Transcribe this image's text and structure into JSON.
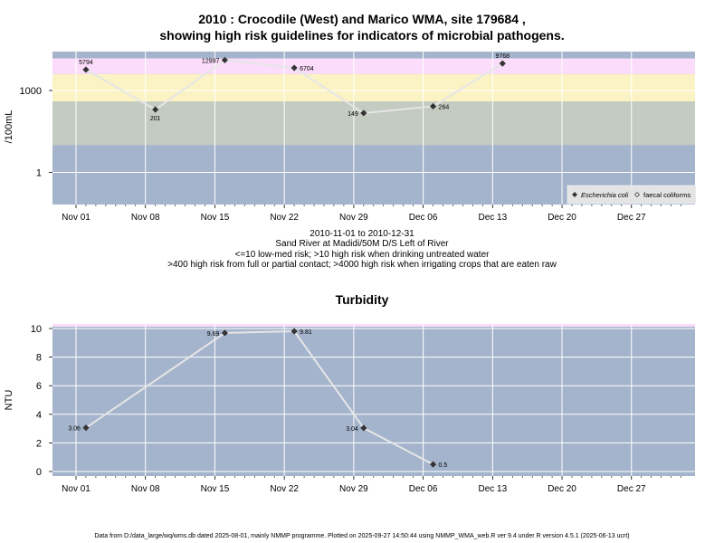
{
  "chart_data": [
    {
      "type": "line",
      "title_line1": "2010 : Crocodile (West) and Marico WMA, site 179684 ,",
      "title_line2": "showing high risk guidelines for indicators of microbial pathogens.",
      "ylabel": "/100mL",
      "yscale": "log",
      "ytick_labels": [
        "1",
        "1000"
      ],
      "x_tick_labels": [
        "Nov 01",
        "Nov 08",
        "Nov 15",
        "Nov 22",
        "Nov 29",
        "Dec 06",
        "Dec 13",
        "Dec 20",
        "Dec 27"
      ],
      "risk_bands": [
        {
          "from": 0.1,
          "to": 10,
          "color": "#a4b4cc"
        },
        {
          "from": 10,
          "to": 400,
          "color": "#c4cbc0"
        },
        {
          "from": 400,
          "to": 4000,
          "color": "#fbf3c4"
        },
        {
          "from": 4000,
          "to": 15000,
          "color": "#fbdcfb"
        }
      ],
      "series": [
        {
          "name": "Escherichia coli",
          "points": [
            {
              "date": "2010-11-02",
              "value": 5794,
              "label": "5794",
              "label_pos": "above"
            },
            {
              "date": "2010-11-09",
              "value": 201,
              "label": "201",
              "label_pos": "below"
            },
            {
              "date": "2010-11-16",
              "value": 12997,
              "label": "12997",
              "label_pos": "left"
            },
            {
              "date": "2010-11-23",
              "value": 6704,
              "label": "6704",
              "label_pos": "right"
            },
            {
              "date": "2010-11-30",
              "value": 149,
              "label": "149",
              "label_pos": "left"
            },
            {
              "date": "2010-12-07",
              "value": 264,
              "label": "264",
              "label_pos": "right"
            },
            {
              "date": "2010-12-14",
              "value": 9768,
              "label": "9768",
              "label_pos": "above"
            }
          ]
        }
      ],
      "legend": [
        {
          "label": "Escherichia coli",
          "marker": "filled-diamond",
          "italic": true
        },
        {
          "label": "faecal coliforms",
          "marker": "open-diamond",
          "italic": false
        }
      ],
      "legend_position": "bottom-right",
      "grid": true
    },
    {
      "type": "line",
      "title": "Turbidity",
      "ylabel": "NTU",
      "yticks": [
        0,
        2,
        4,
        6,
        8,
        10
      ],
      "ylim": [
        -0.3,
        10.2
      ],
      "x_tick_labels": [
        "Nov 01",
        "Nov 08",
        "Nov 15",
        "Nov 22",
        "Nov 29",
        "Dec 06",
        "Dec 13",
        "Dec 20",
        "Dec 27"
      ],
      "series": [
        {
          "points": [
            {
              "date": "2010-11-02",
              "value": 3.06,
              "label": "3.06",
              "label_pos": "left"
            },
            {
              "date": "2010-11-16",
              "value": 9.69,
              "label": "9.69",
              "label_pos": "left"
            },
            {
              "date": "2010-11-23",
              "value": 9.81,
              "label": "9.81",
              "label_pos": "right"
            },
            {
              "date": "2010-11-30",
              "value": 3.04,
              "label": "3.04",
              "label_pos": "left"
            },
            {
              "date": "2010-12-07",
              "value": 0.5,
              "label": "0.5",
              "label_pos": "right"
            }
          ]
        }
      ],
      "grid": true
    }
  ],
  "caption": {
    "line1": "2010-11-01 to 2010-12-31",
    "line2": "Sand River at Madidi/50M D/S Left of River",
    "line3": "<=10 low-med risk; >10 high risk when drinking untreated water",
    "line4": ">400 high risk from full or partial contact; >4000 high risk when irrigating crops that are eaten raw"
  },
  "footer": "Data from D:/data_large/wq/wms.db dated 2025-08-01, mainly NMMP programme. Plotted on 2025-09-27 14:50:44 using NMMP_WMA_web.R ver 9.4 under R version 4.5.1 (2025-06-13 ucrt)",
  "colors": {
    "line": "#e6e6e6",
    "grid": "#ffffff",
    "marker": "#333333",
    "turbidity_bg": "#a4b4cc",
    "turbidity_top": "#fbdcfb"
  }
}
